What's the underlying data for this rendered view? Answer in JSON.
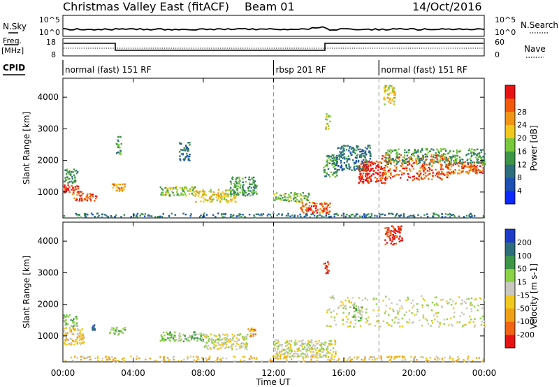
{
  "header": {
    "radar": "Christmas Valley East (fitACF)",
    "beam": "Beam 01",
    "date": "14/Oct/2016"
  },
  "strip_labels": {
    "nsky": "N.Sky",
    "nsearch": "N.Search",
    "freq_line1": "Freq.",
    "freq_line2": "[MHz]",
    "nave": "Nave",
    "cpid": "CPID"
  },
  "strip_ticks": {
    "noise_top_left": "10^5",
    "noise_bottom_left": "10^0",
    "noise_top_right": "10^5",
    "noise_bottom_right": "10^0",
    "freq_top": "18",
    "freq_bottom": "8",
    "nave_top": "60",
    "nave_bottom": "0"
  },
  "cpid_segments": [
    {
      "label": "normal (fast) 151 RF",
      "start": 0,
      "end": 12
    },
    {
      "label": "rbsp 201 RF",
      "start": 12,
      "end": 18
    },
    {
      "label": "normal (fast) 151 RF",
      "start": 18,
      "end": 24
    }
  ],
  "chart_data": [
    {
      "type": "heatmap",
      "ylabel": "Slant Range [km]",
      "xlabel": "Time UT",
      "x_ticks": [
        "00:00",
        "04:00",
        "08:00",
        "12:00",
        "16:00",
        "20:00",
        "00:00"
      ],
      "x_range_hours": [
        0,
        24
      ],
      "y_ticks": [
        1000,
        2000,
        3000,
        4000
      ],
      "y_range_km": [
        180,
        4600
      ],
      "colorbar": {
        "label": "Power [dB]",
        "ticks": [
          "4",
          "8",
          "12",
          "16",
          "20",
          "24",
          "28"
        ],
        "colors": [
          "#0a28ff",
          "#1e50b4",
          "#2d6e7d",
          "#3c9646",
          "#78c83c",
          "#f0c81e",
          "#f09614",
          "#f05a0a",
          "#e61414"
        ]
      },
      "regions": [
        {
          "t0": 0.0,
          "t1": 1.1,
          "r0": 1000,
          "r1": 1250,
          "level": 8
        },
        {
          "t0": 0.5,
          "t1": 1.9,
          "r0": 750,
          "r1": 1000,
          "level": 7
        },
        {
          "t0": 0.0,
          "t1": 0.8,
          "r0": 1300,
          "r1": 1750,
          "level": 3
        },
        {
          "t0": 2.6,
          "t1": 3.5,
          "r0": 1050,
          "r1": 1300,
          "level": 6
        },
        {
          "t0": 3.0,
          "t1": 3.3,
          "r0": 2200,
          "r1": 2800,
          "level": 3
        },
        {
          "t0": 6.6,
          "t1": 7.2,
          "r0": 2000,
          "r1": 2600,
          "level": 2
        },
        {
          "t0": 5.5,
          "t1": 7.5,
          "r0": 900,
          "r1": 1200,
          "level": 4
        },
        {
          "t0": 7.5,
          "t1": 9.8,
          "r0": 700,
          "r1": 1100,
          "level": 5
        },
        {
          "t0": 9.5,
          "t1": 11.0,
          "r0": 900,
          "r1": 1500,
          "level": 3
        },
        {
          "t0": 12.0,
          "t1": 14.0,
          "r0": 700,
          "r1": 1000,
          "level": 4
        },
        {
          "t0": 13.5,
          "t1": 15.2,
          "r0": 350,
          "r1": 700,
          "level": 7
        },
        {
          "t0": 14.8,
          "t1": 15.6,
          "r0": 1500,
          "r1": 2200,
          "level": 3
        },
        {
          "t0": 15.5,
          "t1": 17.5,
          "r0": 1700,
          "r1": 2500,
          "level": 2
        },
        {
          "t0": 16.8,
          "t1": 18.4,
          "r0": 1300,
          "r1": 2000,
          "level": 8
        },
        {
          "t0": 18.0,
          "t1": 22.0,
          "r0": 1400,
          "r1": 2200,
          "level": 7
        },
        {
          "t0": 21.8,
          "t1": 24.0,
          "r0": 1600,
          "r1": 2000,
          "level": 7
        },
        {
          "t0": 18.3,
          "t1": 24.0,
          "r0": 1900,
          "r1": 2400,
          "level": 3
        },
        {
          "t0": 18.2,
          "t1": 18.9,
          "r0": 3800,
          "r1": 4400,
          "level": 5
        },
        {
          "t0": 14.9,
          "t1": 15.2,
          "r0": 3000,
          "r1": 3500,
          "level": 5
        },
        {
          "t0": 0.0,
          "t1": 24.0,
          "r0": 220,
          "r1": 350,
          "level": 2
        }
      ]
    },
    {
      "type": "heatmap",
      "ylabel": "Slant Range [km]",
      "xlabel": "Time UT",
      "x_ticks": [
        "00:00",
        "04:00",
        "08:00",
        "12:00",
        "16:00",
        "20:00",
        "00:00"
      ],
      "x_range_hours": [
        0,
        24
      ],
      "y_ticks": [
        1000,
        2000,
        3000,
        4000
      ],
      "y_range_km": [
        180,
        4600
      ],
      "colorbar": {
        "label": "Velocity [m s-1]",
        "ticks": [
          "200",
          "100",
          "50",
          "15",
          "-15",
          "-50",
          "-100",
          "-200"
        ],
        "colors": [
          "#1e3cc8",
          "#2d6e7d",
          "#3c9646",
          "#8cd246",
          "#c8c8c0",
          "#f0c81e",
          "#f0a014",
          "#f06414",
          "#e61414"
        ]
      },
      "regions": [
        {
          "t0": 0.0,
          "t1": 1.2,
          "r0": 750,
          "r1": 1300,
          "level": 5
        },
        {
          "t0": 0.0,
          "t1": 0.8,
          "r0": 1300,
          "r1": 1700,
          "level": 3
        },
        {
          "t0": 1.6,
          "t1": 1.8,
          "r0": 1200,
          "r1": 1400,
          "level": 0
        },
        {
          "t0": 2.6,
          "t1": 3.5,
          "r0": 1050,
          "r1": 1300,
          "level": 3
        },
        {
          "t0": 5.5,
          "t1": 8.0,
          "r0": 850,
          "r1": 1150,
          "level": 3
        },
        {
          "t0": 8.0,
          "t1": 10.5,
          "r0": 600,
          "r1": 1100,
          "level": 4
        },
        {
          "t0": 10.5,
          "t1": 11.0,
          "r0": 1000,
          "r1": 1300,
          "level": 6
        },
        {
          "t0": 12.0,
          "t1": 15.5,
          "r0": 350,
          "r1": 900,
          "level": 4
        },
        {
          "t0": 15.0,
          "t1": 24.0,
          "r0": 1300,
          "r1": 2300,
          "level": 4
        },
        {
          "t0": 16.5,
          "t1": 17.0,
          "r0": 1500,
          "r1": 2000,
          "level": 3
        },
        {
          "t0": 14.8,
          "t1": 15.1,
          "r0": 3000,
          "r1": 3400,
          "level": 8
        },
        {
          "t0": 18.3,
          "t1": 19.3,
          "r0": 3900,
          "r1": 4500,
          "level": 8
        },
        {
          "t0": 0.0,
          "t1": 24.0,
          "r0": 220,
          "r1": 380,
          "level": 5
        }
      ]
    }
  ]
}
